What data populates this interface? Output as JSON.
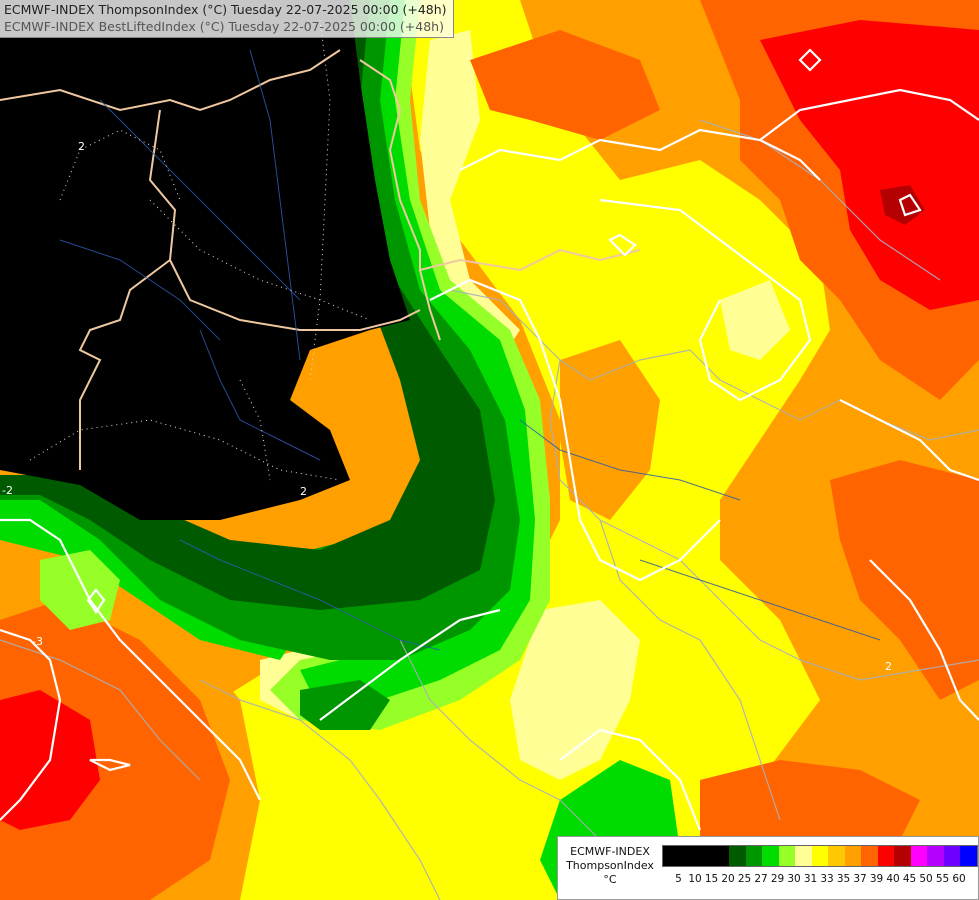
{
  "title": {
    "line1": "ECMWF-INDEX ThompsonIndex (°C) Tuesday 22-07-2025 00:00 (+48h)",
    "line2": "ECMWF-INDEX BestLiftedIndex (°C) Tuesday 22-07-2025 00:00 (+48h)"
  },
  "legend": {
    "model": "ECMWF-INDEX",
    "field": "ThompsonIndex",
    "unit": "°C",
    "scale": [
      {
        "value": 5,
        "color": "#000000"
      },
      {
        "value": 10,
        "color": "#000000"
      },
      {
        "value": 15,
        "color": "#000000"
      },
      {
        "value": 20,
        "color": "#000000"
      },
      {
        "value": 25,
        "color": "#005a00"
      },
      {
        "value": 27,
        "color": "#009600"
      },
      {
        "value": 29,
        "color": "#00dc00"
      },
      {
        "value": 30,
        "color": "#96ff28"
      },
      {
        "value": 31,
        "color": "#ffff96"
      },
      {
        "value": 33,
        "color": "#ffff00"
      },
      {
        "value": 35,
        "color": "#ffc800"
      },
      {
        "value": 37,
        "color": "#ffa000"
      },
      {
        "value": 39,
        "color": "#ff6400"
      },
      {
        "value": 40,
        "color": "#ff0000"
      },
      {
        "value": 45,
        "color": "#b40000"
      },
      {
        "value": 50,
        "color": "#ff00ff"
      },
      {
        "value": 55,
        "color": "#b400ff"
      },
      {
        "value": 60,
        "color": "#6e00ff"
      },
      {
        "value": null,
        "color": "#0000ff"
      }
    ]
  },
  "contour_labels": [
    "2",
    "-2",
    "2",
    "-3",
    "2"
  ]
}
